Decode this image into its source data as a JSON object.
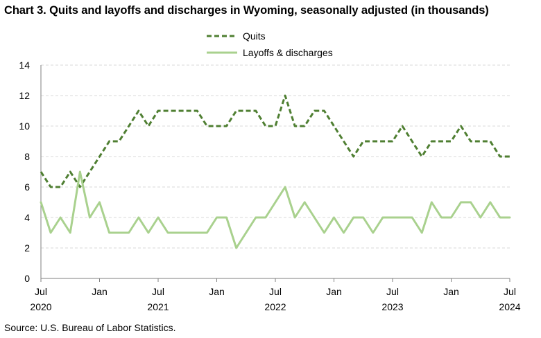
{
  "title": "Chart 3. Quits and layoffs and discharges in Wyoming, seasonally adjusted (in thousands)",
  "source": "Source: U.S. Bureau of Labor Statistics.",
  "chart_data": {
    "type": "line",
    "title": "Chart 3. Quits and layoffs and discharges in Wyoming, seasonally adjusted (in thousands)",
    "xlabel": "",
    "ylabel": "",
    "ylim": [
      0,
      14
    ],
    "yticks": [
      0,
      2,
      4,
      6,
      8,
      10,
      12,
      14
    ],
    "grid": true,
    "legend_position": "top-center",
    "x_tick_labels": [
      {
        "month": "Jul",
        "year": "2020"
      },
      {
        "month": "Jan",
        "year": ""
      },
      {
        "month": "Jul",
        "year": "2021"
      },
      {
        "month": "Jan",
        "year": ""
      },
      {
        "month": "Jul",
        "year": "2022"
      },
      {
        "month": "Jan",
        "year": ""
      },
      {
        "month": "Jul",
        "year": "2023"
      },
      {
        "month": "Jan",
        "year": ""
      },
      {
        "month": "Jul",
        "year": "2024"
      }
    ],
    "x": [
      "2020-07",
      "2020-08",
      "2020-09",
      "2020-10",
      "2020-11",
      "2020-12",
      "2021-01",
      "2021-02",
      "2021-03",
      "2021-04",
      "2021-05",
      "2021-06",
      "2021-07",
      "2021-08",
      "2021-09",
      "2021-10",
      "2021-11",
      "2021-12",
      "2022-01",
      "2022-02",
      "2022-03",
      "2022-04",
      "2022-05",
      "2022-06",
      "2022-07",
      "2022-08",
      "2022-09",
      "2022-10",
      "2022-11",
      "2022-12",
      "2023-01",
      "2023-02",
      "2023-03",
      "2023-04",
      "2023-05",
      "2023-06",
      "2023-07",
      "2023-08",
      "2023-09",
      "2023-10",
      "2023-11",
      "2023-12",
      "2024-01",
      "2024-02",
      "2024-03",
      "2024-04",
      "2024-05",
      "2024-06",
      "2024-07"
    ],
    "series": [
      {
        "name": "Quits",
        "color": "#4f7f32",
        "style": "dashed",
        "values": [
          7,
          6,
          6,
          7,
          6,
          7,
          8,
          9,
          9,
          10,
          11,
          10,
          11,
          11,
          11,
          11,
          11,
          10,
          10,
          10,
          11,
          11,
          11,
          10,
          10,
          12,
          10,
          10,
          11,
          11,
          10,
          9,
          8,
          9,
          9,
          9,
          9,
          10,
          9,
          8,
          9,
          9,
          9,
          10,
          9,
          9,
          9,
          8,
          8
        ]
      },
      {
        "name": "Layoffs & discharges",
        "color": "#a9d18e",
        "style": "solid",
        "values": [
          5,
          3,
          4,
          3,
          7,
          4,
          5,
          3,
          3,
          3,
          4,
          3,
          4,
          3,
          3,
          3,
          3,
          3,
          4,
          4,
          2,
          3,
          4,
          4,
          5,
          6,
          4,
          5,
          4,
          3,
          4,
          3,
          4,
          4,
          3,
          4,
          4,
          4,
          4,
          3,
          5,
          4,
          4,
          5,
          5,
          4,
          5,
          4,
          4
        ]
      }
    ]
  }
}
